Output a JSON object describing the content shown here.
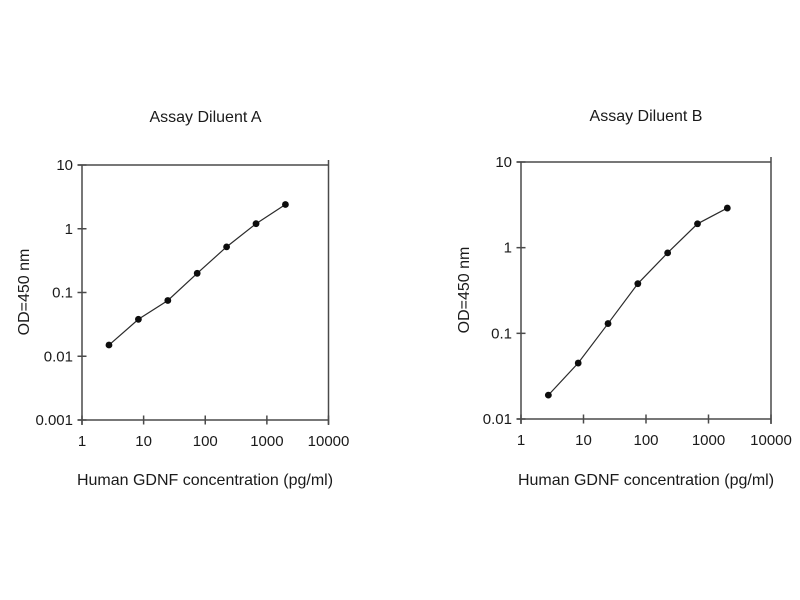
{
  "figure": {
    "background": "#ffffff",
    "axis_color": "#4a4a4a",
    "text_color": "#1a1a1a"
  },
  "chart_data": [
    {
      "type": "line",
      "title": "Assay Diluent A",
      "xlabel": "Human GDNF concentration (pg/ml)",
      "ylabel": "OD=450 nm",
      "x_scale": "log",
      "y_scale": "log",
      "xlim": [
        1,
        10000
      ],
      "ylim": [
        0.001,
        10
      ],
      "x_ticks": [
        1,
        10,
        100,
        1000,
        10000
      ],
      "y_ticks": [
        0.001,
        0.01,
        0.1,
        1,
        10
      ],
      "grid": false,
      "legend": "none",
      "x": [
        2.74,
        8.23,
        24.7,
        74,
        222,
        667,
        2000
      ],
      "y": [
        0.015,
        0.038,
        0.075,
        0.2,
        0.52,
        1.2,
        2.4
      ],
      "marker": "filled-circle",
      "line_color": "#2b2b2b",
      "marker_color": "#0d0d0d"
    },
    {
      "type": "line",
      "title": "Assay Diluent B",
      "xlabel": "Human GDNF concentration (pg/ml)",
      "ylabel": "OD=450 nm",
      "x_scale": "log",
      "y_scale": "log",
      "xlim": [
        1,
        10000
      ],
      "ylim": [
        0.01,
        10
      ],
      "x_ticks": [
        1,
        10,
        100,
        1000,
        10000
      ],
      "y_ticks": [
        0.01,
        0.1,
        1,
        10
      ],
      "grid": false,
      "legend": "none",
      "x": [
        2.74,
        8.23,
        24.7,
        74,
        222,
        667,
        2000
      ],
      "y": [
        0.019,
        0.045,
        0.13,
        0.38,
        0.87,
        1.9,
        2.9
      ],
      "marker": "filled-circle",
      "line_color": "#2b2b2b",
      "marker_color": "#0d0d0d"
    }
  ]
}
